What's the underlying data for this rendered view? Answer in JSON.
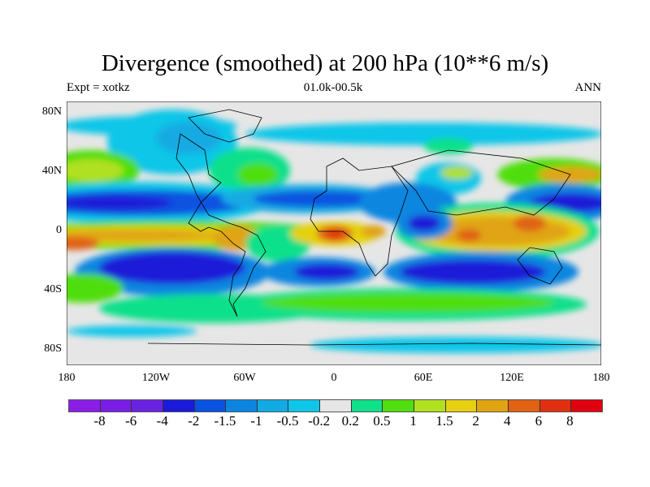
{
  "title": "Divergence (smoothed) at 200 hPa (10**6 m/s)",
  "left_subtitle": "Expt = xotkz",
  "center_subtitle": "01.0k-00.5k",
  "right_subtitle": "ANN",
  "map": {
    "projection": "cylindrical equidistant",
    "x_ticks": [
      "180",
      "120W",
      "60W",
      "0",
      "60E",
      "120E",
      "180"
    ],
    "y_ticks": [
      "80N",
      "40N",
      "0",
      "40S",
      "80S"
    ]
  },
  "colorbar": {
    "labels": [
      "-8",
      "-6",
      "-4",
      "-2",
      "-1.5",
      "-1",
      "-0.5",
      "-0.2",
      "0.2",
      "0.5",
      "1",
      "1.5",
      "2",
      "4",
      "6",
      "8"
    ],
    "colors": [
      "#8a1ee6",
      "#7a1ee6",
      "#6a22e0",
      "#1a1ad8",
      "#0a52e0",
      "#0a86e0",
      "#12aae2",
      "#10c6e8",
      "#e6e6e6",
      "#10e08a",
      "#50de10",
      "#b0e020",
      "#e6d010",
      "#e0a412",
      "#e06212",
      "#e03010",
      "#e00010"
    ]
  }
}
